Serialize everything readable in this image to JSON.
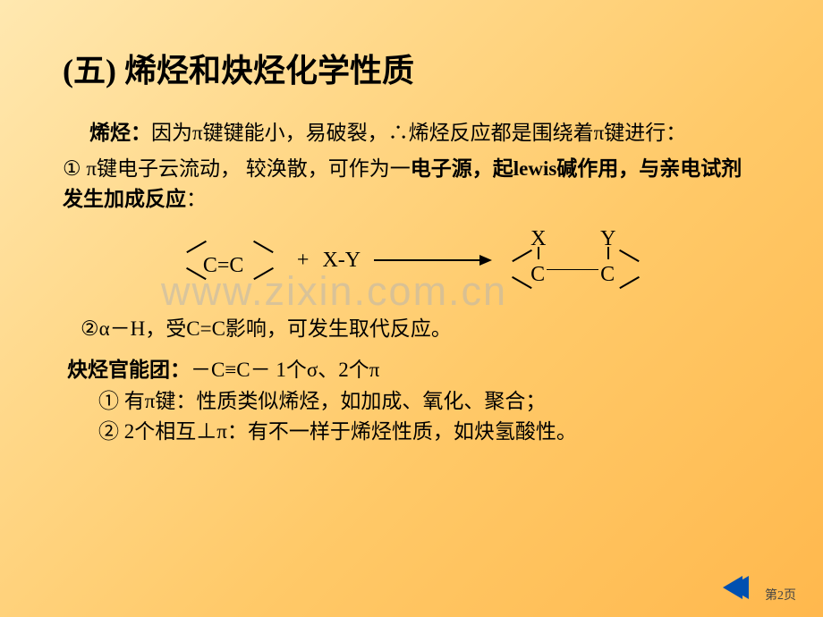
{
  "title": "(五) 烯烃和炔烃化学性质",
  "paragraph1": {
    "lead": "烯烃：",
    "text1": "因为π键键能小，易破裂，∴烯烃反应都是围绕着π键进行：",
    "point1_prefix": "① π键电子云流动， 较涣散，可作为一",
    "point1_bold": "电子源，起lewis碱作用，与亲电试剂发生加成反应",
    "point1_suffix": "："
  },
  "reaction": {
    "reactant_cc": "C=C",
    "plus": "+",
    "xy": "X-Y",
    "product_c": "C",
    "product_x": "X",
    "product_y": "Y"
  },
  "paragraph2": "②α－H，受C=C影响，可发生取代反应。",
  "paragraph3": {
    "lead": "炔烃官能团：",
    "text": "－C≡C－    1个σ、2个π"
  },
  "paragraph4": "① 有π键：性质类似烯烃，如加成、氧化、聚合；",
  "paragraph5": "② 2个相互⊥π：有不一样于烯烃性质，如炔氢酸性。",
  "watermark": "www.zixin.com.cn",
  "pageNum": "第2页",
  "colors": {
    "bg_start": "#ffe8b0",
    "bg_end": "#ffb84d",
    "text": "#000000",
    "nav": "#0050b0",
    "watermark": "rgba(180,180,180,0.5)"
  },
  "fonts": {
    "title_size": 36,
    "body_size": 23
  }
}
